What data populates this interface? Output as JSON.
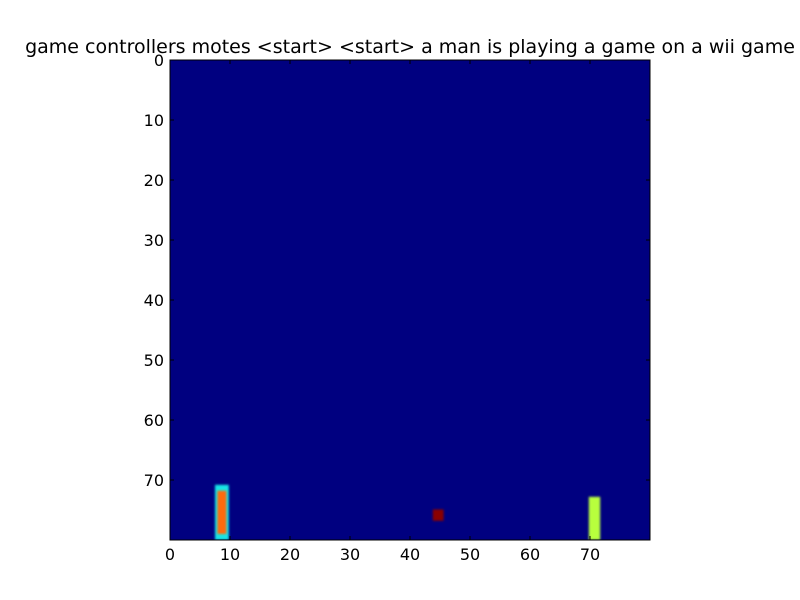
{
  "chart_data": {
    "type": "heatmap",
    "title": "game controllers motes <start> <start> a man is playing a game on a wii game",
    "xlabel": "",
    "ylabel": "",
    "xlim": [
      0,
      80
    ],
    "ylim": [
      80,
      0
    ],
    "xticks": [
      0,
      10,
      20,
      30,
      40,
      50,
      60,
      70
    ],
    "yticks": [
      0,
      10,
      20,
      30,
      40,
      50,
      60,
      70
    ],
    "grid": false,
    "colormap": "jet",
    "background_color": "#000080",
    "features": [
      {
        "name": "left-paddle-outline",
        "x0": 7.5,
        "x1": 9.8,
        "y0": 70.8,
        "y1": 80,
        "color": "#19e6e6"
      },
      {
        "name": "left-paddle-core",
        "x0": 7.9,
        "x1": 9.4,
        "y0": 71.8,
        "y1": 79.0,
        "color": "#ff6a0a"
      },
      {
        "name": "ball",
        "x0": 43.8,
        "x1": 45.6,
        "y0": 74.9,
        "y1": 76.8,
        "color": "#8a0000"
      },
      {
        "name": "right-paddle",
        "x0": 69.8,
        "x1": 71.7,
        "y0": 72.8,
        "y1": 80,
        "color": "#b8ff3c"
      }
    ]
  }
}
